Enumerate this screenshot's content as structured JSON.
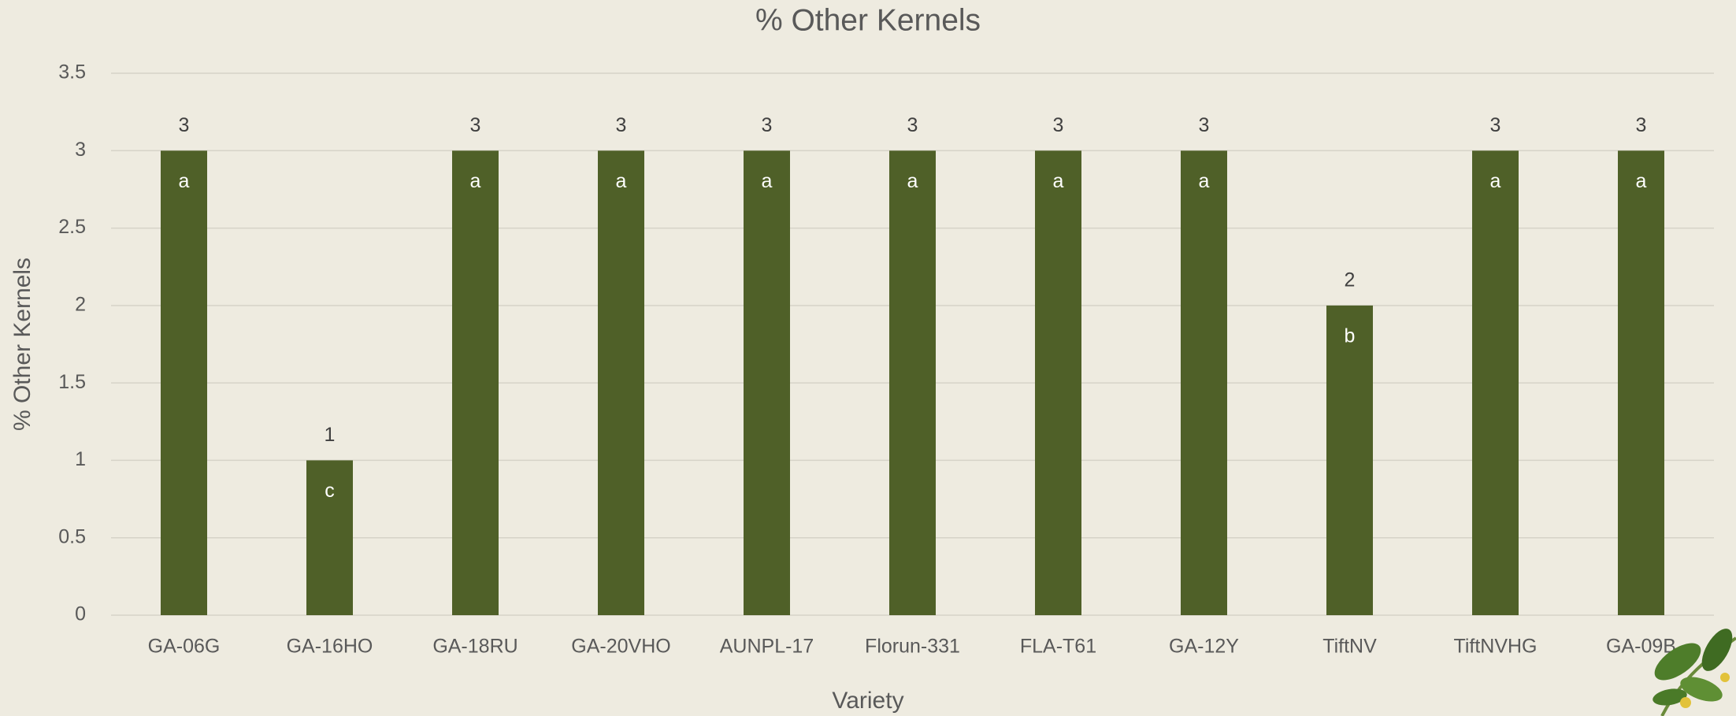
{
  "chart_data": {
    "type": "bar",
    "title": "% Other Kernels",
    "x_label": "Variety",
    "y_label": "% Other Kernels",
    "categories": [
      "GA-06G",
      "GA-16HO",
      "GA-18RU",
      "GA-20VHO",
      "AUNPL-17",
      "Florun-331",
      "FLA-T61",
      "GA-12Y",
      "TiftNV",
      "TiftNVHG",
      "GA-09B"
    ],
    "values": [
      3,
      1,
      3,
      3,
      3,
      3,
      3,
      3,
      2,
      3,
      3
    ],
    "group_letters": [
      "a",
      "c",
      "a",
      "a",
      "a",
      "a",
      "a",
      "a",
      "b",
      "a",
      "a"
    ],
    "color": "#4f6028",
    "ylim": [
      0,
      3.5
    ],
    "yticks": [
      0,
      0.5,
      1,
      1.5,
      2,
      2.5,
      3,
      3.5
    ],
    "grid": true
  }
}
